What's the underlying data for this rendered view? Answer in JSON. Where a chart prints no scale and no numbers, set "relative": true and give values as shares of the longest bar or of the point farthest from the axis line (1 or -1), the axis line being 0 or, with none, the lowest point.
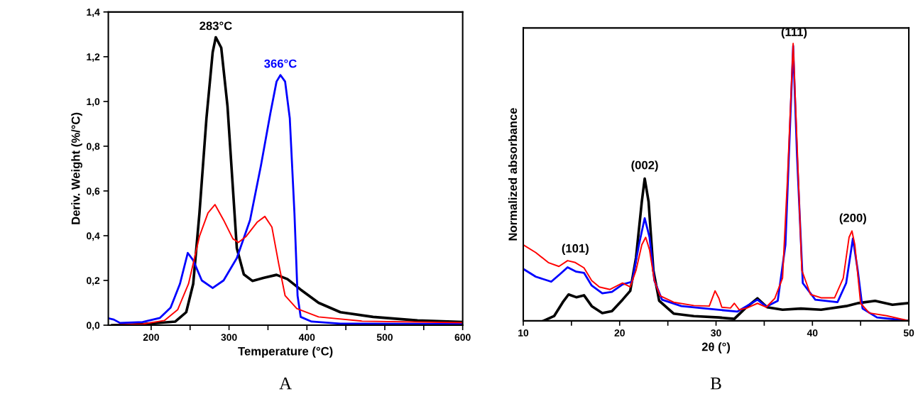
{
  "chart_data": [
    {
      "type": "line",
      "xlabel": "Temperature (°C)",
      "ylabel": "Deriv. Weight (%/°C)",
      "xlim": [
        145,
        600
      ],
      "ylim": [
        0,
        1.4
      ],
      "xticks": [
        200,
        {
          "value": 250,
          "label": null
        },
        300,
        {
          "value": 350,
          "label": null
        },
        400,
        {
          "value": 450,
          "label": null
        },
        500,
        {
          "value": 550,
          "label": null
        },
        600
      ],
      "yticks": [
        {
          "value": 0,
          "label": "0,0"
        },
        {
          "value": 0.2,
          "label": "0,2"
        },
        {
          "value": 0.4,
          "label": "0,4"
        },
        {
          "value": 0.6,
          "label": "0,6"
        },
        {
          "value": 0.8,
          "label": "0,8"
        },
        {
          "value": 1.0,
          "label": "1,0"
        },
        {
          "value": 1.2,
          "label": "1,2"
        },
        {
          "value": 1.4,
          "label": "1,4"
        }
      ],
      "annotations": [
        {
          "text": "283°C",
          "x": 283,
          "y": 1.287
        },
        {
          "text": "366°C",
          "x": 366,
          "y": 1.118
        },
        "A"
      ],
      "series": [
        {
          "color": "#000000",
          "x": [
            150,
            189,
            231,
            245,
            254,
            262,
            271,
            279,
            283,
            290,
            298,
            305,
            310,
            319,
            330,
            344,
            361,
            375,
            392,
            415,
            443,
            485,
            542,
            600
          ],
          "values": [
            0.0,
            0.005,
            0.016,
            0.058,
            0.185,
            0.5,
            0.925,
            1.22,
            1.287,
            1.24,
            0.98,
            0.61,
            0.344,
            0.227,
            0.198,
            0.211,
            0.225,
            0.206,
            0.159,
            0.1,
            0.058,
            0.037,
            0.021,
            0.014
          ]
        },
        {
          "color": "#0000ff",
          "x": [
            146,
            152,
            160,
            189,
            211,
            225,
            237,
            247,
            254,
            265,
            279,
            293,
            310,
            327,
            341,
            353,
            361,
            366,
            372,
            378,
            384,
            388,
            392,
            406,
            443,
            600
          ],
          "values": [
            0.03,
            0.025,
            0.01,
            0.014,
            0.032,
            0.079,
            0.185,
            0.323,
            0.29,
            0.2,
            0.166,
            0.2,
            0.3,
            0.47,
            0.714,
            0.946,
            1.089,
            1.118,
            1.089,
            0.925,
            0.5,
            0.132,
            0.037,
            0.016,
            0.007,
            0.005
          ]
        },
        {
          "color": "#ff0000",
          "x": [
            150,
            189,
            217,
            234,
            248,
            262,
            273,
            282,
            293,
            305,
            312,
            322,
            336,
            346,
            355,
            364,
            372,
            387,
            415,
            471,
            600
          ],
          "values": [
            0.0,
            0.005,
            0.021,
            0.069,
            0.185,
            0.397,
            0.502,
            0.539,
            0.47,
            0.386,
            0.37,
            0.397,
            0.46,
            0.486,
            0.439,
            0.27,
            0.132,
            0.074,
            0.037,
            0.018,
            0.011
          ]
        }
      ]
    },
    {
      "type": "line",
      "relative": true,
      "xlabel": "2θ (°)",
      "ylabel": "Normalized absorbance",
      "xlim": [
        10,
        50
      ],
      "xticks": [
        10,
        {
          "value": 15,
          "label": null
        },
        20,
        {
          "value": 25,
          "label": null
        },
        30,
        {
          "value": 35,
          "label": null
        },
        40,
        {
          "value": 45,
          "label": null
        },
        50
      ],
      "annotations": [
        {
          "text": "(101)",
          "x": 15.4,
          "y": 0.22
        },
        {
          "text": "(002)",
          "x": 22.6,
          "y": 0.52
        },
        {
          "text": "(111)",
          "x": 38.1,
          "y": 1.0
        },
        {
          "text": "(200)",
          "x": 44.2,
          "y": 0.33
        },
        "B"
      ],
      "series": [
        {
          "color": "#000000",
          "x": [
            12.1,
            13.2,
            14.1,
            14.7,
            15.5,
            16.3,
            17.1,
            18.2,
            19.2,
            20.3,
            21.1,
            21.7,
            22.3,
            22.6,
            23.0,
            23.5,
            24.1,
            25.6,
            27.7,
            30.3,
            31.9,
            33.0,
            34.3,
            35.3,
            36.9,
            38.8,
            40.9,
            43.5,
            44.8,
            46.5,
            48.3,
            50.0
          ],
          "values": [
            0.0,
            0.017,
            0.067,
            0.095,
            0.085,
            0.092,
            0.053,
            0.028,
            0.035,
            0.076,
            0.108,
            0.228,
            0.43,
            0.513,
            0.43,
            0.182,
            0.072,
            0.026,
            0.017,
            0.012,
            0.007,
            0.044,
            0.081,
            0.049,
            0.04,
            0.044,
            0.04,
            0.053,
            0.064,
            0.072,
            0.058,
            0.064
          ]
        },
        {
          "color": "#0000ff",
          "x": [
            10.0,
            11.3,
            12.9,
            13.8,
            14.6,
            15.5,
            16.3,
            17.1,
            18.2,
            19.2,
            20.3,
            21.3,
            22.0,
            22.6,
            23.1,
            23.6,
            24.4,
            26.4,
            29.0,
            32.2,
            34.3,
            35.2,
            36.4,
            37.2,
            38.0,
            38.4,
            39.0,
            40.3,
            42.6,
            43.5,
            44.2,
            44.7,
            45.2,
            46.7,
            50.0
          ],
          "values": [
            0.187,
            0.159,
            0.141,
            0.168,
            0.193,
            0.177,
            0.173,
            0.127,
            0.099,
            0.104,
            0.131,
            0.141,
            0.274,
            0.37,
            0.301,
            0.145,
            0.076,
            0.053,
            0.044,
            0.033,
            0.076,
            0.051,
            0.072,
            0.274,
            0.991,
            0.596,
            0.136,
            0.076,
            0.067,
            0.136,
            0.297,
            0.182,
            0.044,
            0.012,
            0.0
          ]
        },
        {
          "color": "#ff0000",
          "x": [
            10.0,
            11.3,
            12.6,
            13.7,
            14.6,
            15.4,
            16.3,
            17.1,
            17.9,
            19.0,
            20.3,
            21.1,
            21.7,
            22.3,
            22.7,
            23.1,
            23.6,
            24.2,
            25.6,
            27.7,
            29.3,
            29.9,
            30.3,
            30.6,
            31.5,
            31.9,
            32.4,
            33.2,
            34.3,
            35.2,
            36.1,
            36.9,
            37.4,
            38.0,
            38.4,
            38.9,
            39.8,
            40.9,
            42.3,
            43.2,
            43.8,
            44.1,
            44.4,
            45.0,
            45.9,
            47.7,
            50.0
          ],
          "values": [
            0.274,
            0.246,
            0.21,
            0.196,
            0.217,
            0.21,
            0.191,
            0.145,
            0.122,
            0.113,
            0.136,
            0.122,
            0.182,
            0.274,
            0.301,
            0.256,
            0.145,
            0.09,
            0.067,
            0.055,
            0.053,
            0.108,
            0.081,
            0.049,
            0.046,
            0.063,
            0.04,
            0.046,
            0.063,
            0.049,
            0.081,
            0.154,
            0.504,
            1.0,
            0.643,
            0.182,
            0.095,
            0.083,
            0.083,
            0.154,
            0.301,
            0.324,
            0.274,
            0.063,
            0.028,
            0.018,
            0.0
          ]
        }
      ]
    }
  ]
}
